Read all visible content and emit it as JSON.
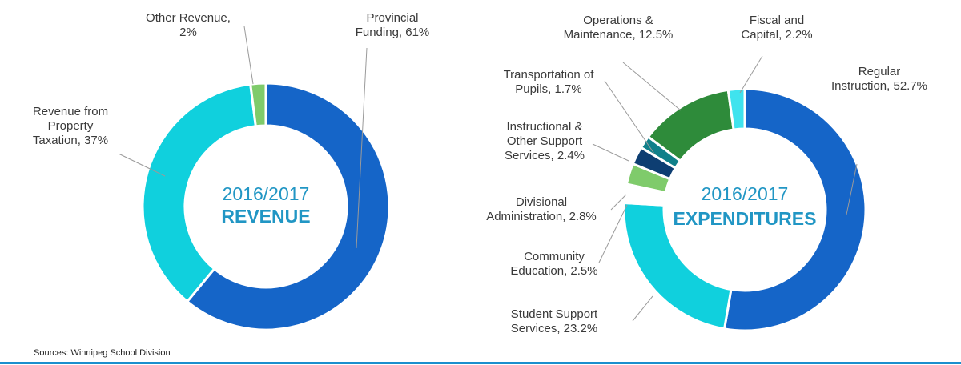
{
  "colors": {
    "dark_blue": "#1565c8",
    "mid_blue": "#2592e8",
    "cyan": "#10d0dd",
    "light_cyan": "#3fe3ee",
    "green": "#7fcb6b",
    "dark_green": "#2e8b3a",
    "teal": "#10808a",
    "navy": "#0d3e72",
    "center_text": "#2196c4"
  },
  "chart_data": [
    {
      "type": "pie",
      "donut": true,
      "center_year": "2016/2017",
      "center_title": "REVENUE",
      "slices": [
        {
          "label_lines": [
            "Provincial",
            "Funding, 61%"
          ],
          "value": 61,
          "color": "#1565c8"
        },
        {
          "label_lines": [
            "Revenue from",
            "Property",
            "Taxation, 37%"
          ],
          "value": 37,
          "color": "#10d0dd"
        },
        {
          "label_lines": [
            "Other Revenue,",
            "2%"
          ],
          "value": 2,
          "color": "#7fcb6b"
        }
      ]
    },
    {
      "type": "pie",
      "donut": true,
      "center_year": "2016/2017",
      "center_title": "EXPENDITURES",
      "slices": [
        {
          "label_lines": [
            "Regular",
            "Instruction, 52.7%"
          ],
          "value": 52.7,
          "color": "#1565c8"
        },
        {
          "label_lines": [
            "Student Support",
            "Services, 23.2%"
          ],
          "value": 23.2,
          "color": "#10d0dd"
        },
        {
          "label_lines": [
            "Community",
            "Education, 2.5%"
          ],
          "value": 2.5,
          "color": "#ffffff"
        },
        {
          "label_lines": [
            "Divisional",
            "Administration, 2.8%"
          ],
          "value": 2.8,
          "color": "#7fcb6b"
        },
        {
          "label_lines": [
            "Instructional  &",
            "Other  Support",
            "Services, 2.4%"
          ],
          "value": 2.4,
          "color": "#0d3e72"
        },
        {
          "label_lines": [
            "Transportation of",
            "Pupils, 1.7%"
          ],
          "value": 1.7,
          "color": "#10808a"
        },
        {
          "label_lines": [
            "Operations &",
            "Maintenance, 12.5%"
          ],
          "value": 12.5,
          "color": "#2e8b3a"
        },
        {
          "label_lines": [
            "Fiscal and",
            "Capital, 2.2%"
          ],
          "value": 2.2,
          "color": "#3fe3ee"
        }
      ]
    }
  ],
  "source": "Sources: Winnipeg School Division"
}
